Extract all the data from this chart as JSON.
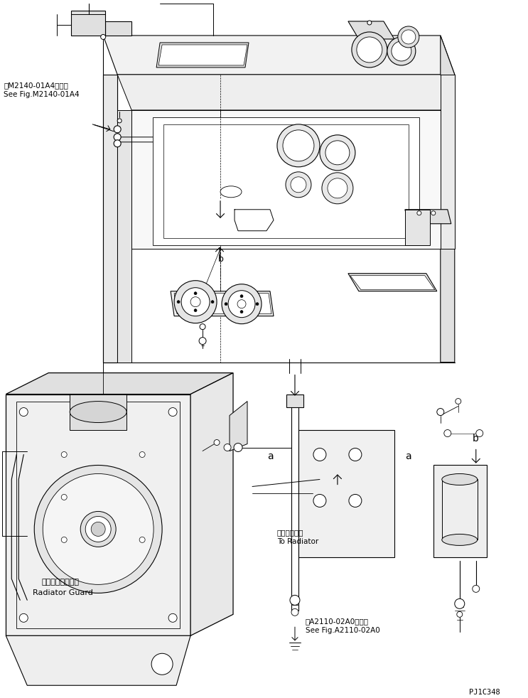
{
  "background_color": "#ffffff",
  "line_color": "#000000",
  "fig_width": 7.43,
  "fig_height": 9.82,
  "dpi": 100,
  "ref_text_1_jp": "第M2140-01A4図参照",
  "ref_text_1_en": "See Fig.M2140-01A4",
  "ref_text_2_jp": "第A2110-02A0図参照",
  "ref_text_2_en": "See Fig.A2110-02A0",
  "label_radiator_guard_jp": "ラジェータガード",
  "label_radiator_guard_en": "Radiator Guard",
  "label_to_radiator_jp": "ラジェータへ",
  "label_to_radiator_en": "To Radiator",
  "part_id": "PJ1C348",
  "label_a": "a",
  "label_b": "b"
}
